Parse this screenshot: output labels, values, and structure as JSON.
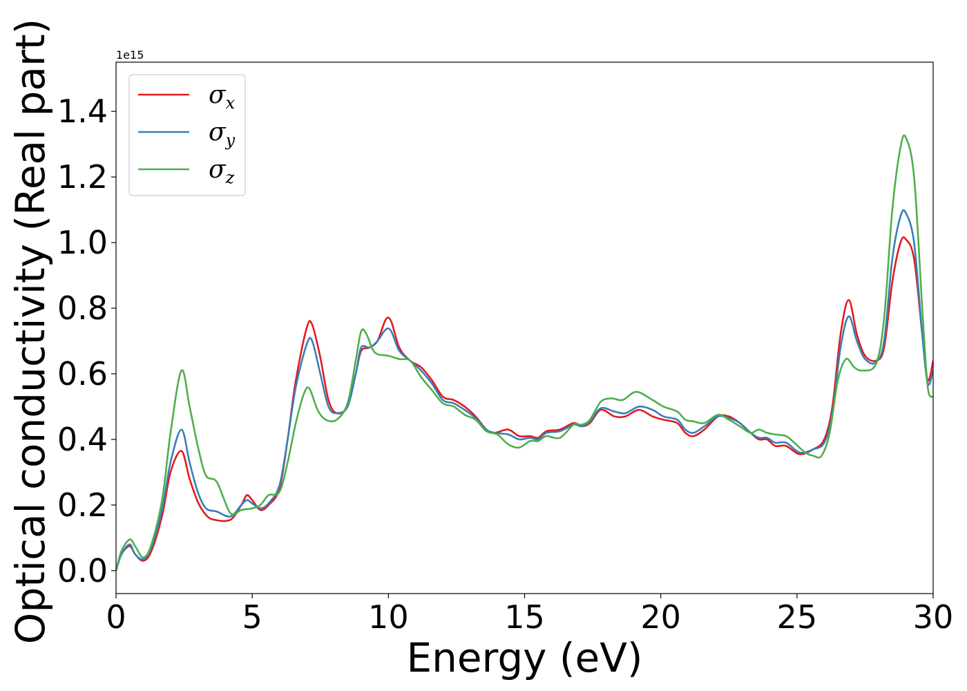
{
  "chart_data": {
    "type": "line",
    "xlabel": "Energy (eV)",
    "ylabel": "Optical conductivity (Real part)",
    "y_exponent_label": "1e15",
    "xlim": [
      0,
      30
    ],
    "ylim": [
      -0.07,
      1.55
    ],
    "x_ticks": [
      0,
      5,
      10,
      15,
      20,
      25,
      30
    ],
    "x_tick_labels": [
      "0",
      "5",
      "10",
      "15",
      "20",
      "25",
      "30"
    ],
    "y_ticks": [
      0.0,
      0.2,
      0.4,
      0.6,
      0.8,
      1.0,
      1.2,
      1.4
    ],
    "y_tick_labels": [
      "0.0",
      "0.2",
      "0.4",
      "0.6",
      "0.8",
      "1.0",
      "1.2",
      "1.4"
    ],
    "grid": false,
    "legend_position": "top-left",
    "series": [
      {
        "name": "σx",
        "symbol": "σ",
        "subscript": "x",
        "color": "#e41a1c",
        "points": [
          [
            0,
            0
          ],
          [
            0.2,
            0.05
          ],
          [
            0.5,
            0.075
          ],
          [
            0.7,
            0.05
          ],
          [
            1.0,
            0.03
          ],
          [
            1.3,
            0.06
          ],
          [
            1.7,
            0.17
          ],
          [
            2.0,
            0.3
          ],
          [
            2.4,
            0.365
          ],
          [
            2.7,
            0.28
          ],
          [
            3.0,
            0.21
          ],
          [
            3.3,
            0.17
          ],
          [
            3.6,
            0.155
          ],
          [
            4.2,
            0.155
          ],
          [
            4.6,
            0.2
          ],
          [
            4.8,
            0.23
          ],
          [
            5.0,
            0.215
          ],
          [
            5.3,
            0.185
          ],
          [
            5.6,
            0.2
          ],
          [
            6.0,
            0.25
          ],
          [
            6.3,
            0.4
          ],
          [
            6.6,
            0.58
          ],
          [
            7.0,
            0.74
          ],
          [
            7.2,
            0.75
          ],
          [
            7.5,
            0.65
          ],
          [
            7.8,
            0.52
          ],
          [
            8.1,
            0.48
          ],
          [
            8.5,
            0.5
          ],
          [
            8.8,
            0.6
          ],
          [
            9.0,
            0.67
          ],
          [
            9.3,
            0.68
          ],
          [
            9.6,
            0.7
          ],
          [
            9.9,
            0.765
          ],
          [
            10.1,
            0.76
          ],
          [
            10.4,
            0.68
          ],
          [
            10.8,
            0.64
          ],
          [
            11.2,
            0.62
          ],
          [
            11.6,
            0.58
          ],
          [
            12.0,
            0.53
          ],
          [
            12.4,
            0.52
          ],
          [
            12.8,
            0.5
          ],
          [
            13.2,
            0.47
          ],
          [
            13.6,
            0.43
          ],
          [
            13.9,
            0.42
          ],
          [
            14.4,
            0.43
          ],
          [
            14.8,
            0.41
          ],
          [
            15.2,
            0.41
          ],
          [
            15.5,
            0.405
          ],
          [
            15.8,
            0.425
          ],
          [
            16.3,
            0.43
          ],
          [
            16.8,
            0.45
          ],
          [
            17.1,
            0.44
          ],
          [
            17.4,
            0.45
          ],
          [
            17.8,
            0.49
          ],
          [
            18.3,
            0.47
          ],
          [
            18.7,
            0.47
          ],
          [
            19.2,
            0.49
          ],
          [
            19.7,
            0.47
          ],
          [
            20.1,
            0.46
          ],
          [
            20.6,
            0.45
          ],
          [
            20.9,
            0.42
          ],
          [
            21.2,
            0.41
          ],
          [
            21.6,
            0.43
          ],
          [
            22.1,
            0.47
          ],
          [
            22.5,
            0.47
          ],
          [
            22.9,
            0.45
          ],
          [
            23.3,
            0.42
          ],
          [
            23.6,
            0.4
          ],
          [
            23.9,
            0.4
          ],
          [
            24.2,
            0.38
          ],
          [
            24.6,
            0.38
          ],
          [
            25.1,
            0.355
          ],
          [
            25.6,
            0.37
          ],
          [
            26.0,
            0.4
          ],
          [
            26.3,
            0.5
          ],
          [
            26.6,
            0.72
          ],
          [
            26.9,
            0.825
          ],
          [
            27.2,
            0.72
          ],
          [
            27.5,
            0.655
          ],
          [
            27.9,
            0.64
          ],
          [
            28.2,
            0.68
          ],
          [
            28.5,
            0.88
          ],
          [
            28.8,
            1.0
          ],
          [
            29.0,
            1.01
          ],
          [
            29.3,
            0.95
          ],
          [
            29.6,
            0.72
          ],
          [
            29.8,
            0.58
          ],
          [
            30.0,
            0.64
          ]
        ]
      },
      {
        "name": "σy",
        "symbol": "σ",
        "subscript": "y",
        "color": "#377eb8",
        "points": [
          [
            0,
            0
          ],
          [
            0.2,
            0.05
          ],
          [
            0.5,
            0.08
          ],
          [
            0.7,
            0.05
          ],
          [
            1.0,
            0.035
          ],
          [
            1.3,
            0.07
          ],
          [
            1.7,
            0.19
          ],
          [
            2.0,
            0.33
          ],
          [
            2.4,
            0.43
          ],
          [
            2.7,
            0.33
          ],
          [
            3.0,
            0.24
          ],
          [
            3.3,
            0.19
          ],
          [
            3.7,
            0.18
          ],
          [
            4.2,
            0.165
          ],
          [
            4.6,
            0.2
          ],
          [
            4.8,
            0.215
          ],
          [
            5.0,
            0.205
          ],
          [
            5.3,
            0.19
          ],
          [
            5.6,
            0.205
          ],
          [
            6.0,
            0.26
          ],
          [
            6.3,
            0.4
          ],
          [
            6.6,
            0.56
          ],
          [
            7.0,
            0.69
          ],
          [
            7.2,
            0.7
          ],
          [
            7.5,
            0.6
          ],
          [
            7.8,
            0.5
          ],
          [
            8.1,
            0.48
          ],
          [
            8.5,
            0.5
          ],
          [
            8.8,
            0.6
          ],
          [
            9.0,
            0.68
          ],
          [
            9.3,
            0.68
          ],
          [
            9.6,
            0.7
          ],
          [
            9.9,
            0.735
          ],
          [
            10.1,
            0.73
          ],
          [
            10.4,
            0.67
          ],
          [
            10.8,
            0.64
          ],
          [
            11.2,
            0.61
          ],
          [
            11.6,
            0.57
          ],
          [
            12.0,
            0.52
          ],
          [
            12.4,
            0.51
          ],
          [
            12.8,
            0.49
          ],
          [
            13.2,
            0.465
          ],
          [
            13.6,
            0.43
          ],
          [
            13.9,
            0.42
          ],
          [
            14.4,
            0.415
          ],
          [
            14.8,
            0.4
          ],
          [
            15.2,
            0.405
          ],
          [
            15.5,
            0.4
          ],
          [
            15.8,
            0.42
          ],
          [
            16.3,
            0.425
          ],
          [
            16.8,
            0.445
          ],
          [
            17.1,
            0.44
          ],
          [
            17.4,
            0.455
          ],
          [
            17.8,
            0.495
          ],
          [
            18.3,
            0.485
          ],
          [
            18.7,
            0.48
          ],
          [
            19.2,
            0.5
          ],
          [
            19.7,
            0.49
          ],
          [
            20.1,
            0.47
          ],
          [
            20.6,
            0.46
          ],
          [
            20.9,
            0.43
          ],
          [
            21.2,
            0.42
          ],
          [
            21.6,
            0.44
          ],
          [
            22.1,
            0.47
          ],
          [
            22.5,
            0.465
          ],
          [
            22.9,
            0.45
          ],
          [
            23.3,
            0.42
          ],
          [
            23.6,
            0.405
          ],
          [
            23.9,
            0.405
          ],
          [
            24.2,
            0.39
          ],
          [
            24.6,
            0.39
          ],
          [
            25.1,
            0.36
          ],
          [
            25.6,
            0.37
          ],
          [
            26.0,
            0.39
          ],
          [
            26.3,
            0.48
          ],
          [
            26.6,
            0.68
          ],
          [
            26.9,
            0.775
          ],
          [
            27.2,
            0.7
          ],
          [
            27.5,
            0.645
          ],
          [
            27.9,
            0.635
          ],
          [
            28.2,
            0.7
          ],
          [
            28.5,
            0.95
          ],
          [
            28.8,
            1.08
          ],
          [
            29.0,
            1.09
          ],
          [
            29.3,
            1.0
          ],
          [
            29.6,
            0.72
          ],
          [
            29.8,
            0.57
          ],
          [
            30.0,
            0.61
          ]
        ]
      },
      {
        "name": "σz",
        "symbol": "σ",
        "subscript": "z",
        "color": "#4daf4a",
        "points": [
          [
            0,
            0
          ],
          [
            0.2,
            0.06
          ],
          [
            0.5,
            0.095
          ],
          [
            0.7,
            0.075
          ],
          [
            1.0,
            0.04
          ],
          [
            1.3,
            0.08
          ],
          [
            1.7,
            0.22
          ],
          [
            2.0,
            0.42
          ],
          [
            2.4,
            0.61
          ],
          [
            2.7,
            0.5
          ],
          [
            3.0,
            0.38
          ],
          [
            3.3,
            0.29
          ],
          [
            3.7,
            0.27
          ],
          [
            4.2,
            0.175
          ],
          [
            4.6,
            0.185
          ],
          [
            5.0,
            0.19
          ],
          [
            5.3,
            0.2
          ],
          [
            5.6,
            0.23
          ],
          [
            6.0,
            0.24
          ],
          [
            6.3,
            0.33
          ],
          [
            6.6,
            0.45
          ],
          [
            6.9,
            0.54
          ],
          [
            7.1,
            0.555
          ],
          [
            7.4,
            0.49
          ],
          [
            7.7,
            0.46
          ],
          [
            8.1,
            0.46
          ],
          [
            8.5,
            0.51
          ],
          [
            8.8,
            0.64
          ],
          [
            9.0,
            0.73
          ],
          [
            9.2,
            0.72
          ],
          [
            9.5,
            0.665
          ],
          [
            10.0,
            0.655
          ],
          [
            10.4,
            0.645
          ],
          [
            10.8,
            0.64
          ],
          [
            11.2,
            0.59
          ],
          [
            11.6,
            0.55
          ],
          [
            12.0,
            0.51
          ],
          [
            12.4,
            0.5
          ],
          [
            12.8,
            0.475
          ],
          [
            13.2,
            0.46
          ],
          [
            13.6,
            0.425
          ],
          [
            14.0,
            0.415
          ],
          [
            14.4,
            0.385
          ],
          [
            14.8,
            0.375
          ],
          [
            15.2,
            0.395
          ],
          [
            15.5,
            0.395
          ],
          [
            15.8,
            0.41
          ],
          [
            16.3,
            0.405
          ],
          [
            16.8,
            0.445
          ],
          [
            17.1,
            0.445
          ],
          [
            17.4,
            0.46
          ],
          [
            17.8,
            0.515
          ],
          [
            18.2,
            0.525
          ],
          [
            18.6,
            0.52
          ],
          [
            19.1,
            0.545
          ],
          [
            19.7,
            0.52
          ],
          [
            20.1,
            0.5
          ],
          [
            20.6,
            0.485
          ],
          [
            20.9,
            0.46
          ],
          [
            21.2,
            0.455
          ],
          [
            21.6,
            0.45
          ],
          [
            22.1,
            0.475
          ],
          [
            22.5,
            0.46
          ],
          [
            22.9,
            0.44
          ],
          [
            23.3,
            0.42
          ],
          [
            23.6,
            0.43
          ],
          [
            23.9,
            0.42
          ],
          [
            24.2,
            0.415
          ],
          [
            24.6,
            0.41
          ],
          [
            24.9,
            0.39
          ],
          [
            25.3,
            0.36
          ],
          [
            25.6,
            0.35
          ],
          [
            25.9,
            0.35
          ],
          [
            26.2,
            0.42
          ],
          [
            26.5,
            0.58
          ],
          [
            26.8,
            0.645
          ],
          [
            27.1,
            0.62
          ],
          [
            27.4,
            0.61
          ],
          [
            27.9,
            0.63
          ],
          [
            28.2,
            0.77
          ],
          [
            28.5,
            1.1
          ],
          [
            28.8,
            1.29
          ],
          [
            29.0,
            1.32
          ],
          [
            29.3,
            1.2
          ],
          [
            29.6,
            0.8
          ],
          [
            29.8,
            0.56
          ],
          [
            30.0,
            0.53
          ]
        ]
      }
    ]
  }
}
